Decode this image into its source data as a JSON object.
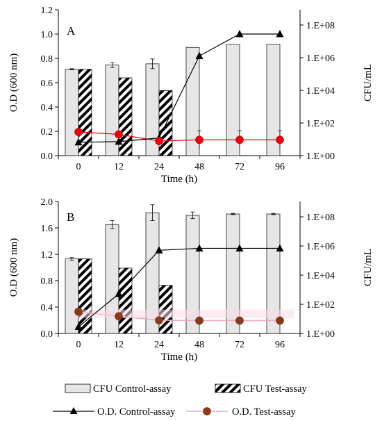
{
  "chart_data": [
    {
      "type": "bar",
      "panel": "A",
      "categories": [
        "0",
        "12",
        "24",
        "48",
        "72",
        "96"
      ],
      "xlabel": "Time (h)",
      "ylabel": "O.D (600 nm)",
      "y2label": "CFU/mL",
      "ylim": [
        0,
        1.2
      ],
      "yticks": [
        "0.0",
        "0.2",
        "0.4",
        "0.6",
        "0.8",
        "1.0",
        "1.2"
      ],
      "y2scale": "log",
      "y2ticks": [
        "1.E+00",
        "1.E+02",
        "1.E+04",
        "1.E+06",
        "1.E+08"
      ],
      "grid": false,
      "series": [
        {
          "name": "CFU Control-assay",
          "kind": "bar",
          "axis": "left",
          "color": "#e6e6e6",
          "values": [
            0.71,
            0.745,
            0.755,
            0.89,
            0.915,
            0.915
          ],
          "errors": [
            0.005,
            0.02,
            0.04,
            0.0,
            0.0,
            0.0
          ]
        },
        {
          "name": "CFU Test-assay",
          "kind": "hatched-bar",
          "axis": "left",
          "color": "#000000",
          "values": [
            0.71,
            0.64,
            0.535,
            null,
            null,
            null
          ]
        },
        {
          "name": "O.D. Control-assay",
          "kind": "line-triangle",
          "axis": "left",
          "color": "#000000",
          "values": [
            0.11,
            0.115,
            0.145,
            0.82,
            1.0,
            1.0
          ]
        },
        {
          "name": "O.D. Test-assay",
          "kind": "line-circle",
          "axis": "left",
          "color": "#e8000b",
          "values": [
            0.195,
            0.175,
            0.12,
            0.13,
            0.13,
            0.13
          ],
          "errors": [
            0.0,
            0.0,
            0.0,
            0.075,
            0.075,
            0.075
          ]
        }
      ]
    },
    {
      "type": "bar",
      "panel": "B",
      "categories": [
        "0",
        "12",
        "24",
        "48",
        "72",
        "96"
      ],
      "xlabel": "Time (h)",
      "ylabel": "O.D (600 nm)",
      "y2label": "CFU/mL",
      "ylim": [
        0,
        2.0
      ],
      "yticks": [
        "0.0",
        "0.4",
        "0.8",
        "1.2",
        "1.6",
        "2.0"
      ],
      "y2scale": "log",
      "y2ticks": [
        "1.E+00",
        "1.E+02",
        "1.E+04",
        "1.E+06",
        "1.E+08"
      ],
      "grid": false,
      "series": [
        {
          "name": "CFU Control-assay",
          "kind": "bar",
          "axis": "left",
          "color": "#e6e6e6",
          "values": [
            1.13,
            1.65,
            1.83,
            1.79,
            1.81,
            1.81
          ],
          "errors": [
            0.02,
            0.06,
            0.12,
            0.05,
            0.01,
            0.01
          ]
        },
        {
          "name": "CFU Test-assay",
          "kind": "hatched-bar",
          "axis": "left",
          "color": "#000000",
          "values": [
            1.13,
            0.99,
            0.73,
            null,
            null,
            null
          ]
        },
        {
          "name": "O.D. Control-assay",
          "kind": "line-triangle",
          "axis": "left",
          "color": "#000000",
          "values": [
            0.1,
            0.6,
            1.26,
            1.29,
            1.29,
            1.29
          ]
        },
        {
          "name": "O.D. Test-assay",
          "kind": "line-circle",
          "axis": "left",
          "color": "#8b3a1a",
          "values": [
            0.33,
            0.26,
            0.2,
            0.195,
            0.195,
            0.195
          ]
        }
      ]
    }
  ],
  "legend": {
    "placement": "bottom",
    "items": [
      {
        "label": "CFU Control-assay",
        "symbol": "bar"
      },
      {
        "label": "CFU Test-assay",
        "symbol": "hatched-bar"
      },
      {
        "label": "O.D. Control-assay",
        "symbol": "line-triangle"
      },
      {
        "label": "O.D. Test-assay",
        "symbol": "line-circle"
      }
    ]
  }
}
